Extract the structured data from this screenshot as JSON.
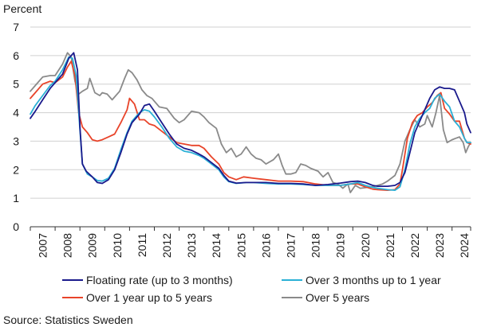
{
  "chart_data": {
    "type": "line",
    "ylabel": "Percent",
    "ylim": [
      0,
      7
    ],
    "yticks": [
      "0",
      "1",
      "2",
      "3",
      "4",
      "5",
      "6",
      "7"
    ],
    "xlim": [
      2007,
      2024.75
    ],
    "xticks": [
      "2007",
      "2008",
      "2009",
      "2010",
      "2011",
      "2012",
      "2013",
      "2014",
      "2015",
      "2016",
      "2017",
      "2018",
      "2019",
      "2020",
      "2021",
      "2022",
      "2023",
      "2024"
    ],
    "grid": "horizontal",
    "legend_position": "bottom",
    "series": [
      {
        "name": "Floating rate (up to 3 months)",
        "color": "#1a1a8c",
        "points": [
          [
            2007.0,
            3.8
          ],
          [
            2007.2,
            4.05
          ],
          [
            2007.5,
            4.45
          ],
          [
            2007.8,
            4.85
          ],
          [
            2008.0,
            5.05
          ],
          [
            2008.3,
            5.35
          ],
          [
            2008.55,
            5.9
          ],
          [
            2008.75,
            6.1
          ],
          [
            2008.9,
            5.5
          ],
          [
            2009.0,
            3.5
          ],
          [
            2009.1,
            2.2
          ],
          [
            2009.25,
            1.95
          ],
          [
            2009.5,
            1.75
          ],
          [
            2009.7,
            1.55
          ],
          [
            2009.9,
            1.52
          ],
          [
            2010.15,
            1.65
          ],
          [
            2010.4,
            2.0
          ],
          [
            2010.65,
            2.6
          ],
          [
            2010.9,
            3.25
          ],
          [
            2011.1,
            3.65
          ],
          [
            2011.4,
            3.95
          ],
          [
            2011.6,
            4.25
          ],
          [
            2011.8,
            4.3
          ],
          [
            2012.0,
            4.05
          ],
          [
            2012.3,
            3.65
          ],
          [
            2012.6,
            3.25
          ],
          [
            2012.9,
            2.9
          ],
          [
            2013.2,
            2.75
          ],
          [
            2013.5,
            2.68
          ],
          [
            2013.8,
            2.55
          ],
          [
            2014.0,
            2.45
          ],
          [
            2014.3,
            2.25
          ],
          [
            2014.6,
            2.05
          ],
          [
            2014.8,
            1.8
          ],
          [
            2015.0,
            1.6
          ],
          [
            2015.3,
            1.53
          ],
          [
            2015.7,
            1.55
          ],
          [
            2016.0,
            1.55
          ],
          [
            2016.5,
            1.55
          ],
          [
            2017.0,
            1.52
          ],
          [
            2017.5,
            1.52
          ],
          [
            2018.0,
            1.5
          ],
          [
            2018.5,
            1.45
          ],
          [
            2019.0,
            1.48
          ],
          [
            2019.5,
            1.53
          ],
          [
            2019.9,
            1.58
          ],
          [
            2020.2,
            1.6
          ],
          [
            2020.5,
            1.55
          ],
          [
            2020.8,
            1.45
          ],
          [
            2021.0,
            1.42
          ],
          [
            2021.4,
            1.42
          ],
          [
            2021.7,
            1.45
          ],
          [
            2021.9,
            1.55
          ],
          [
            2022.1,
            1.9
          ],
          [
            2022.3,
            2.6
          ],
          [
            2022.5,
            3.3
          ],
          [
            2022.7,
            3.7
          ],
          [
            2022.9,
            4.1
          ],
          [
            2023.1,
            4.5
          ],
          [
            2023.3,
            4.8
          ],
          [
            2023.5,
            4.9
          ],
          [
            2023.7,
            4.85
          ],
          [
            2023.9,
            4.85
          ],
          [
            2024.1,
            4.8
          ],
          [
            2024.3,
            4.4
          ],
          [
            2024.5,
            4.0
          ],
          [
            2024.6,
            3.6
          ],
          [
            2024.75,
            3.3
          ]
        ]
      },
      {
        "name": "Over 3 months up to 1 year",
        "color": "#2ab0d6",
        "points": [
          [
            2007.0,
            3.95
          ],
          [
            2007.2,
            4.25
          ],
          [
            2007.5,
            4.6
          ],
          [
            2007.8,
            4.95
          ],
          [
            2008.0,
            5.1
          ],
          [
            2008.3,
            5.5
          ],
          [
            2008.55,
            5.95
          ],
          [
            2008.7,
            5.9
          ],
          [
            2008.85,
            5.3
          ],
          [
            2009.0,
            3.4
          ],
          [
            2009.1,
            2.2
          ],
          [
            2009.3,
            1.85
          ],
          [
            2009.5,
            1.75
          ],
          [
            2009.7,
            1.62
          ],
          [
            2009.9,
            1.6
          ],
          [
            2010.15,
            1.7
          ],
          [
            2010.4,
            2.05
          ],
          [
            2010.65,
            2.7
          ],
          [
            2010.9,
            3.3
          ],
          [
            2011.1,
            3.7
          ],
          [
            2011.4,
            4.0
          ],
          [
            2011.6,
            4.1
          ],
          [
            2011.8,
            4.05
          ],
          [
            2012.0,
            3.85
          ],
          [
            2012.3,
            3.5
          ],
          [
            2012.6,
            3.1
          ],
          [
            2012.9,
            2.8
          ],
          [
            2013.2,
            2.65
          ],
          [
            2013.5,
            2.6
          ],
          [
            2013.8,
            2.5
          ],
          [
            2014.0,
            2.4
          ],
          [
            2014.3,
            2.2
          ],
          [
            2014.6,
            2.0
          ],
          [
            2014.8,
            1.75
          ],
          [
            2015.0,
            1.58
          ],
          [
            2015.3,
            1.52
          ],
          [
            2015.7,
            1.55
          ],
          [
            2016.0,
            1.55
          ],
          [
            2016.5,
            1.52
          ],
          [
            2017.0,
            1.5
          ],
          [
            2017.5,
            1.5
          ],
          [
            2018.0,
            1.48
          ],
          [
            2018.5,
            1.45
          ],
          [
            2019.0,
            1.45
          ],
          [
            2019.5,
            1.45
          ],
          [
            2019.9,
            1.5
          ],
          [
            2020.2,
            1.55
          ],
          [
            2020.5,
            1.45
          ],
          [
            2020.8,
            1.38
          ],
          [
            2021.0,
            1.35
          ],
          [
            2021.4,
            1.3
          ],
          [
            2021.7,
            1.28
          ],
          [
            2021.9,
            1.4
          ],
          [
            2022.1,
            2.0
          ],
          [
            2022.3,
            2.9
          ],
          [
            2022.5,
            3.5
          ],
          [
            2022.7,
            3.8
          ],
          [
            2022.9,
            4.0
          ],
          [
            2023.1,
            4.15
          ],
          [
            2023.3,
            4.5
          ],
          [
            2023.5,
            4.65
          ],
          [
            2023.7,
            4.4
          ],
          [
            2023.9,
            4.2
          ],
          [
            2024.1,
            3.7
          ],
          [
            2024.3,
            3.5
          ],
          [
            2024.5,
            3.1
          ],
          [
            2024.6,
            2.95
          ],
          [
            2024.75,
            2.95
          ]
        ]
      },
      {
        "name": "Over 1 year up to 5 years",
        "color": "#e8442a",
        "points": [
          [
            2007.0,
            4.5
          ],
          [
            2007.2,
            4.7
          ],
          [
            2007.5,
            5.0
          ],
          [
            2007.8,
            5.1
          ],
          [
            2008.0,
            5.05
          ],
          [
            2008.3,
            5.25
          ],
          [
            2008.5,
            5.6
          ],
          [
            2008.65,
            5.8
          ],
          [
            2008.8,
            5.3
          ],
          [
            2008.95,
            4.0
          ],
          [
            2009.1,
            3.5
          ],
          [
            2009.3,
            3.3
          ],
          [
            2009.5,
            3.05
          ],
          [
            2009.7,
            3.0
          ],
          [
            2009.9,
            3.05
          ],
          [
            2010.15,
            3.15
          ],
          [
            2010.4,
            3.25
          ],
          [
            2010.65,
            3.65
          ],
          [
            2010.9,
            4.1
          ],
          [
            2011.0,
            4.5
          ],
          [
            2011.2,
            4.3
          ],
          [
            2011.4,
            3.75
          ],
          [
            2011.6,
            3.75
          ],
          [
            2011.8,
            3.6
          ],
          [
            2012.0,
            3.55
          ],
          [
            2012.3,
            3.35
          ],
          [
            2012.6,
            3.15
          ],
          [
            2012.9,
            2.95
          ],
          [
            2013.2,
            2.9
          ],
          [
            2013.5,
            2.85
          ],
          [
            2013.8,
            2.85
          ],
          [
            2014.0,
            2.75
          ],
          [
            2014.3,
            2.45
          ],
          [
            2014.6,
            2.2
          ],
          [
            2014.8,
            1.9
          ],
          [
            2015.0,
            1.75
          ],
          [
            2015.3,
            1.65
          ],
          [
            2015.6,
            1.75
          ],
          [
            2016.0,
            1.7
          ],
          [
            2016.5,
            1.65
          ],
          [
            2017.0,
            1.6
          ],
          [
            2017.5,
            1.6
          ],
          [
            2018.0,
            1.58
          ],
          [
            2018.5,
            1.5
          ],
          [
            2019.0,
            1.45
          ],
          [
            2019.5,
            1.45
          ],
          [
            2019.9,
            1.5
          ],
          [
            2020.2,
            1.5
          ],
          [
            2020.5,
            1.4
          ],
          [
            2020.8,
            1.32
          ],
          [
            2021.0,
            1.3
          ],
          [
            2021.4,
            1.28
          ],
          [
            2021.7,
            1.3
          ],
          [
            2021.9,
            1.5
          ],
          [
            2022.0,
            2.0
          ],
          [
            2022.2,
            3.1
          ],
          [
            2022.4,
            3.65
          ],
          [
            2022.6,
            3.9
          ],
          [
            2022.8,
            4.0
          ],
          [
            2023.0,
            4.2
          ],
          [
            2023.2,
            4.35
          ],
          [
            2023.4,
            4.6
          ],
          [
            2023.55,
            4.7
          ],
          [
            2023.7,
            4.15
          ],
          [
            2023.9,
            3.95
          ],
          [
            2024.1,
            3.7
          ],
          [
            2024.3,
            3.7
          ],
          [
            2024.5,
            3.1
          ],
          [
            2024.6,
            2.95
          ],
          [
            2024.75,
            2.9
          ]
        ]
      },
      {
        "name": "Over 5 years",
        "color": "#8a8a8a",
        "points": [
          [
            2007.0,
            4.75
          ],
          [
            2007.2,
            4.95
          ],
          [
            2007.5,
            5.25
          ],
          [
            2007.8,
            5.3
          ],
          [
            2008.0,
            5.3
          ],
          [
            2008.3,
            5.7
          ],
          [
            2008.5,
            6.1
          ],
          [
            2008.65,
            5.95
          ],
          [
            2008.8,
            5.1
          ],
          [
            2008.95,
            4.65
          ],
          [
            2009.1,
            4.75
          ],
          [
            2009.3,
            4.85
          ],
          [
            2009.4,
            5.2
          ],
          [
            2009.6,
            4.7
          ],
          [
            2009.8,
            4.6
          ],
          [
            2009.9,
            4.7
          ],
          [
            2010.1,
            4.65
          ],
          [
            2010.3,
            4.45
          ],
          [
            2010.6,
            4.75
          ],
          [
            2010.8,
            5.2
          ],
          [
            2010.95,
            5.5
          ],
          [
            2011.1,
            5.4
          ],
          [
            2011.3,
            5.15
          ],
          [
            2011.5,
            4.8
          ],
          [
            2011.7,
            4.6
          ],
          [
            2011.9,
            4.5
          ],
          [
            2012.0,
            4.4
          ],
          [
            2012.2,
            4.2
          ],
          [
            2012.5,
            4.15
          ],
          [
            2012.8,
            3.8
          ],
          [
            2013.0,
            3.65
          ],
          [
            2013.2,
            3.75
          ],
          [
            2013.5,
            4.05
          ],
          [
            2013.8,
            4.0
          ],
          [
            2014.0,
            3.85
          ],
          [
            2014.2,
            3.65
          ],
          [
            2014.5,
            3.45
          ],
          [
            2014.7,
            2.9
          ],
          [
            2014.9,
            2.6
          ],
          [
            2015.1,
            2.75
          ],
          [
            2015.3,
            2.45
          ],
          [
            2015.5,
            2.55
          ],
          [
            2015.7,
            2.8
          ],
          [
            2015.9,
            2.55
          ],
          [
            2016.1,
            2.4
          ],
          [
            2016.3,
            2.35
          ],
          [
            2016.5,
            2.2
          ],
          [
            2016.8,
            2.35
          ],
          [
            2017.0,
            2.55
          ],
          [
            2017.15,
            2.15
          ],
          [
            2017.3,
            1.85
          ],
          [
            2017.5,
            1.85
          ],
          [
            2017.7,
            1.9
          ],
          [
            2017.9,
            2.2
          ],
          [
            2018.1,
            2.15
          ],
          [
            2018.3,
            2.05
          ],
          [
            2018.6,
            1.95
          ],
          [
            2018.8,
            1.75
          ],
          [
            2019.0,
            1.9
          ],
          [
            2019.2,
            1.55
          ],
          [
            2019.4,
            1.5
          ],
          [
            2019.6,
            1.35
          ],
          [
            2019.8,
            1.5
          ],
          [
            2019.9,
            1.2
          ],
          [
            2020.1,
            1.45
          ],
          [
            2020.3,
            1.35
          ],
          [
            2020.6,
            1.38
          ],
          [
            2020.8,
            1.4
          ],
          [
            2021.0,
            1.45
          ],
          [
            2021.2,
            1.5
          ],
          [
            2021.4,
            1.6
          ],
          [
            2021.7,
            1.8
          ],
          [
            2021.9,
            2.2
          ],
          [
            2022.1,
            3.0
          ],
          [
            2022.3,
            3.4
          ],
          [
            2022.5,
            3.75
          ],
          [
            2022.7,
            3.5
          ],
          [
            2022.9,
            3.6
          ],
          [
            2023.0,
            3.9
          ],
          [
            2023.2,
            3.5
          ],
          [
            2023.35,
            4.0
          ],
          [
            2023.5,
            4.6
          ],
          [
            2023.65,
            3.4
          ],
          [
            2023.8,
            2.95
          ],
          [
            2024.0,
            3.05
          ],
          [
            2024.15,
            3.1
          ],
          [
            2024.3,
            3.15
          ],
          [
            2024.45,
            2.95
          ],
          [
            2024.55,
            2.6
          ],
          [
            2024.65,
            2.8
          ],
          [
            2024.75,
            2.95
          ]
        ]
      }
    ]
  },
  "source_text": "Source: Statistics Sweden"
}
